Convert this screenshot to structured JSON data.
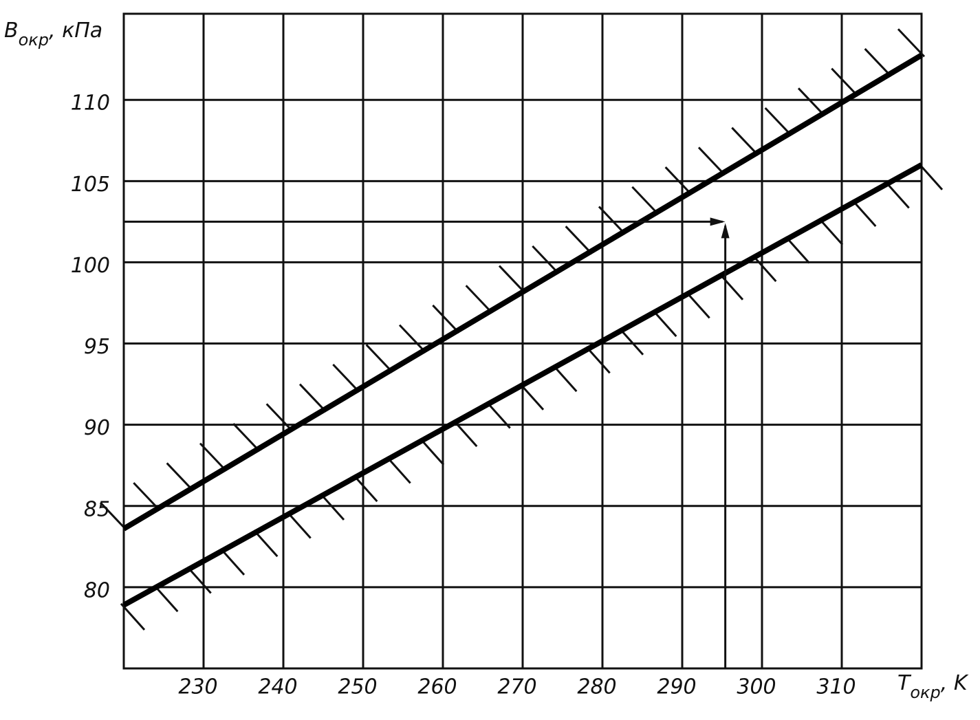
{
  "chart_data": {
    "type": "line",
    "ylabel": {
      "symbol": "B",
      "subscript": "окр",
      "unit": ", кПа"
    },
    "xlabel": {
      "symbol": "T",
      "subscript": "окр",
      "unit": ", K"
    },
    "x": [
      220,
      320
    ],
    "series": [
      {
        "color": "#000000",
        "values": [
          83.6,
          112.75
        ]
      },
      {
        "color": "#000000",
        "values": [
          78.9,
          106.0
        ]
      }
    ],
    "arrow": {
      "x": 295.4,
      "y": 102.5
    },
    "xlim": [
      220,
      320
    ],
    "ylim": [
      75,
      115.3
    ],
    "xticks": [
      230,
      240,
      250,
      260,
      270,
      280,
      290,
      300,
      310
    ],
    "yticks": [
      80,
      85,
      90,
      95,
      100,
      105,
      110
    ],
    "grid": true
  }
}
